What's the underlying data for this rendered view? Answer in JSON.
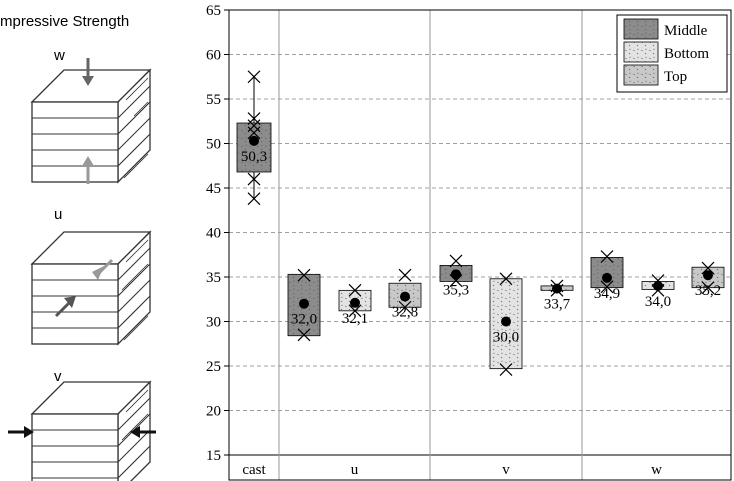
{
  "left_panel": {
    "title": "mpressive Strength",
    "specimens": [
      {
        "label": "w",
        "load": "vertical"
      },
      {
        "label": "u",
        "load": "in-plane diagonal"
      },
      {
        "label": "v",
        "load": "horizontal"
      }
    ],
    "icons": [
      "layered-cube-icon",
      "arrow-down-icon",
      "arrow-up-icon",
      "arrow-diagonal-icon",
      "arrow-right-icon",
      "arrow-left-icon"
    ]
  },
  "chart_data": {
    "type": "box",
    "ylim": [
      15,
      65
    ],
    "yticks": [
      15,
      20,
      25,
      30,
      35,
      40,
      45,
      50,
      55,
      60,
      65
    ],
    "grid": true,
    "groups": [
      "cast",
      "u",
      "v",
      "w"
    ],
    "legend": {
      "placement": "top-right",
      "entries": [
        {
          "name": "Middle",
          "color": "#8c8c8c"
        },
        {
          "name": "Bottom",
          "color": "#e3e3e3"
        },
        {
          "name": "Top",
          "color": "#c8c8c8"
        }
      ]
    },
    "boxes": [
      {
        "group": "cast",
        "series": "Middle",
        "q1": 46.8,
        "q3": 52.3,
        "mean": 50.3,
        "label": "50,3",
        "points": [
          57.5,
          52.8,
          52.0,
          51.2,
          46.0,
          43.8
        ],
        "whisker": [
          43.8,
          57.5
        ]
      },
      {
        "group": "u",
        "series": "Middle",
        "q1": 28.4,
        "q3": 35.3,
        "mean": 32.0,
        "label": "32,0",
        "points": [
          35.2,
          28.5
        ]
      },
      {
        "group": "u",
        "series": "Bottom",
        "q1": 31.2,
        "q3": 33.5,
        "mean": 32.1,
        "label": "32,1",
        "points": [
          33.5,
          31.2
        ]
      },
      {
        "group": "u",
        "series": "Top",
        "q1": 31.6,
        "q3": 34.3,
        "mean": 32.8,
        "label": "32,8",
        "points": [
          35.2,
          31.6
        ]
      },
      {
        "group": "v",
        "series": "Middle",
        "q1": 34.5,
        "q3": 36.3,
        "mean": 35.3,
        "label": "35,3",
        "points": [
          36.8,
          34.6
        ]
      },
      {
        "group": "v",
        "series": "Bottom",
        "q1": 24.7,
        "q3": 34.8,
        "mean": 30.0,
        "label": "30,0",
        "points": [
          34.8,
          24.6
        ]
      },
      {
        "group": "v",
        "series": "Top",
        "q1": 33.5,
        "q3": 34.0,
        "mean": 33.7,
        "label": "33,7",
        "points": [
          34.0,
          33.5
        ]
      },
      {
        "group": "w",
        "series": "Middle",
        "q1": 33.8,
        "q3": 37.2,
        "mean": 34.9,
        "label": "34,9",
        "points": [
          37.3,
          33.9
        ]
      },
      {
        "group": "w",
        "series": "Bottom",
        "q1": 33.6,
        "q3": 34.5,
        "mean": 34.0,
        "label": "34,0",
        "points": [
          34.6,
          33.5
        ]
      },
      {
        "group": "w",
        "series": "Top",
        "q1": 33.8,
        "q3": 36.1,
        "mean": 35.2,
        "label": "35,2",
        "points": [
          36.0,
          33.8
        ]
      }
    ]
  }
}
